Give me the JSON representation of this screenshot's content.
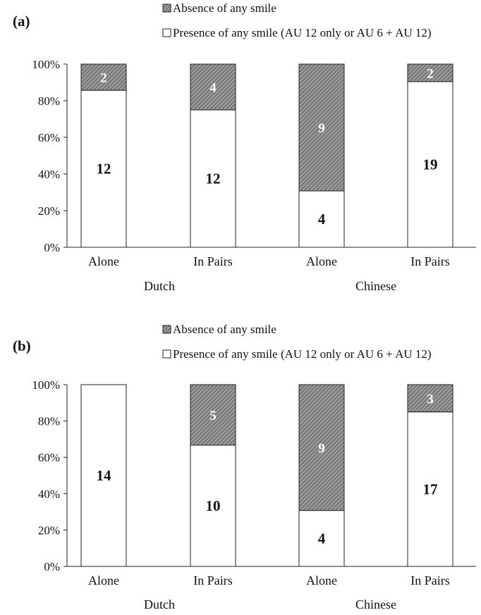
{
  "colors": {
    "presence_fill": "#ffffff",
    "absence_pattern": "hatched-gray",
    "stroke": "#222222"
  },
  "chart_data": [
    {
      "panel_label": "(a)",
      "type": "bar",
      "stacked": true,
      "percent_scale": true,
      "ylim": [
        0,
        100
      ],
      "yticks": [
        "0%",
        "20%",
        "40%",
        "60%",
        "80%",
        "100%"
      ],
      "categories": [
        "Alone",
        "In Pairs",
        "Alone",
        "In Pairs"
      ],
      "groups": [
        {
          "name": "Dutch",
          "categories": [
            0,
            1
          ]
        },
        {
          "name": "Chinese",
          "categories": [
            2,
            3
          ]
        }
      ],
      "legend_position": "top",
      "series": [
        {
          "name": "Presence of any smile (AU 12 only or AU 6 + AU 12)",
          "counts": [
            12,
            12,
            4,
            19
          ]
        },
        {
          "name": "Absence of any smile",
          "counts": [
            2,
            4,
            9,
            2
          ]
        }
      ]
    },
    {
      "panel_label": "(b)",
      "type": "bar",
      "stacked": true,
      "percent_scale": true,
      "ylim": [
        0,
        100
      ],
      "yticks": [
        "0%",
        "20%",
        "40%",
        "60%",
        "80%",
        "100%"
      ],
      "categories": [
        "Alone",
        "In Pairs",
        "Alone",
        "In Pairs"
      ],
      "groups": [
        {
          "name": "Dutch",
          "categories": [
            0,
            1
          ]
        },
        {
          "name": "Chinese",
          "categories": [
            2,
            3
          ]
        }
      ],
      "legend_position": "top",
      "series": [
        {
          "name": "Presence of any smile (AU 12 only or AU 6 + AU 12)",
          "counts": [
            14,
            10,
            4,
            17
          ]
        },
        {
          "name": "Absence of any smile",
          "counts": [
            0,
            5,
            9,
            3
          ]
        }
      ]
    }
  ]
}
